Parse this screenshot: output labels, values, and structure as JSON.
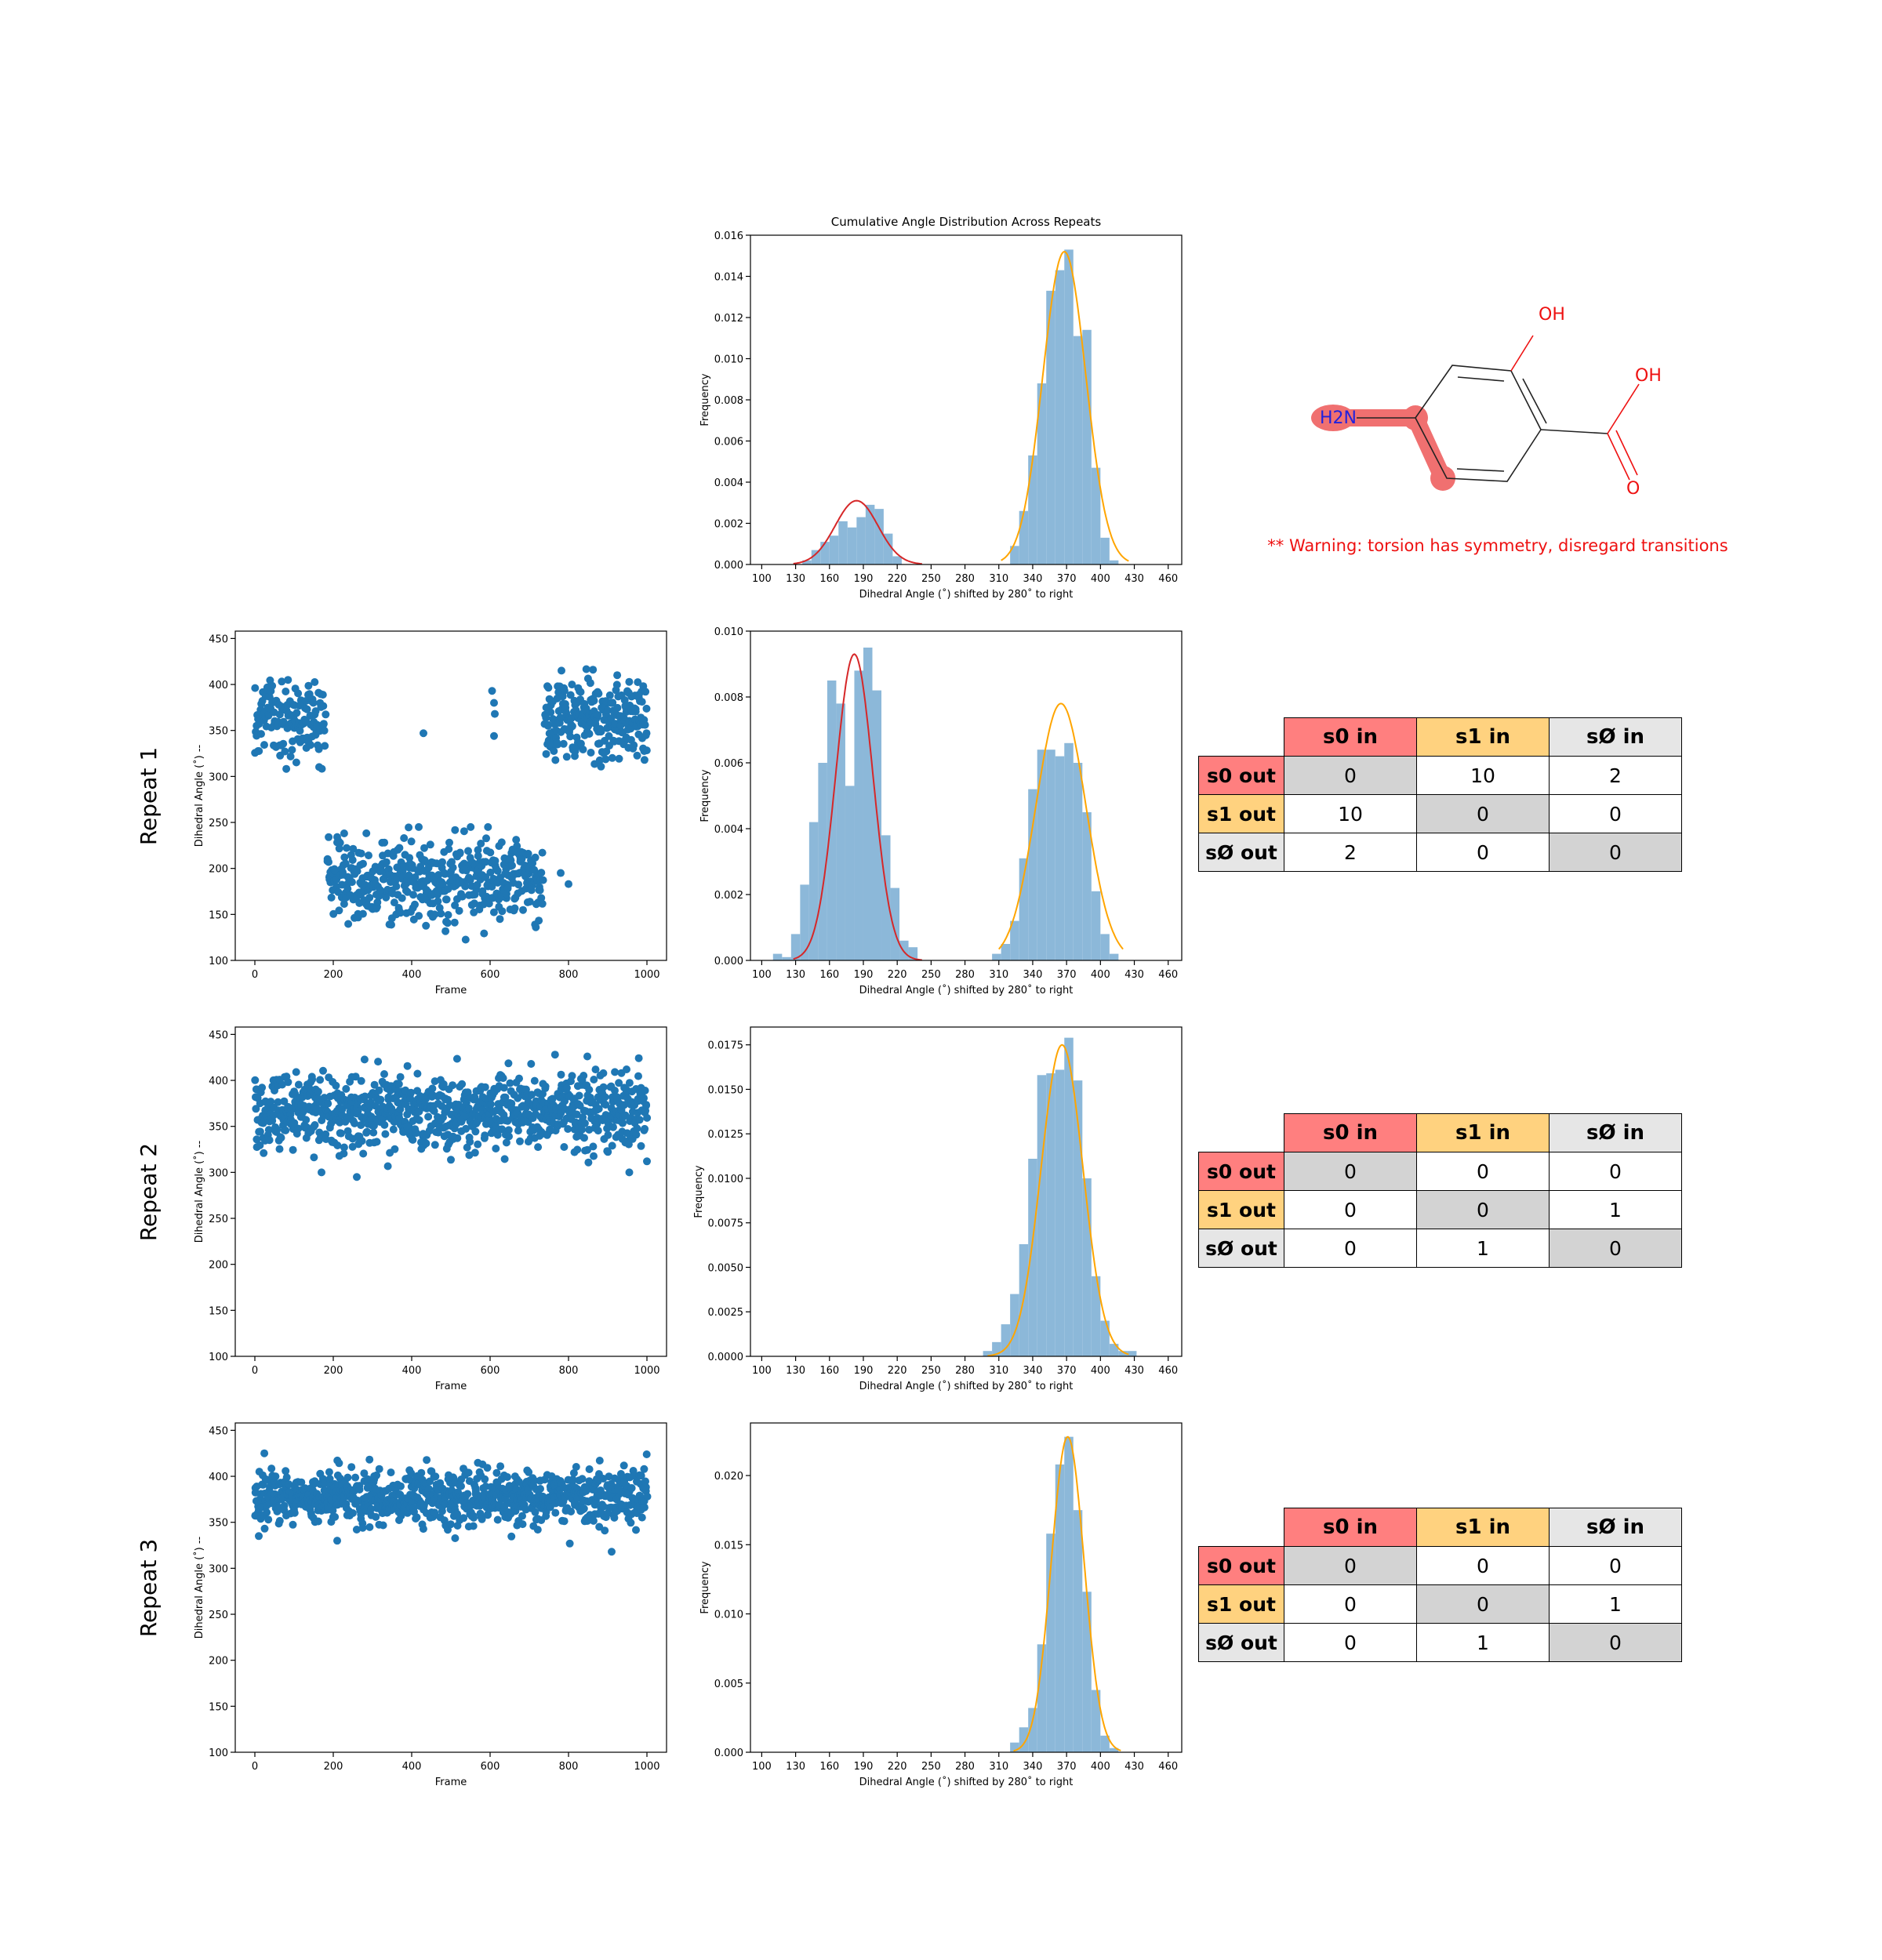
{
  "colors": {
    "scatter": "#1f77b4",
    "hist": "#8cb8d9",
    "fit_s0": "#d62728",
    "fit_s1": "#ffa500",
    "s0_header": "#ff7f7f",
    "s1_header": "#ffd27f",
    "snull_header": "#e6e6e6",
    "diagonal": "#d3d3d3",
    "warning": "#ee1111"
  },
  "molecule": {
    "labels": {
      "oh_top": "OH",
      "oh_acid": "OH",
      "o_acid": "O",
      "amine": "H2N"
    },
    "highlight_color": "#f07070"
  },
  "warning_text": "** Warning: torsion has symmetry, disregard transitions",
  "repeats": [
    {
      "label": "Repeat 1"
    },
    {
      "label": "Repeat 2"
    },
    {
      "label": "Repeat 3"
    }
  ],
  "chart_data": [
    {
      "id": "cumulative",
      "type": "bar",
      "title": "Cumulative Angle Distribution Across Repeats",
      "xlabel": "Dihedral Angle (˚) shifted by 280˚ to right",
      "ylabel": "Frequency",
      "xlim": [
        90,
        472
      ],
      "ylim": [
        0,
        0.016
      ],
      "xticks": [
        "100",
        "130",
        "160",
        "190",
        "220",
        "250",
        "280",
        "310",
        "340",
        "370",
        "400",
        "430",
        "460"
      ],
      "yticks": [
        "0.000",
        "0.002",
        "0.004",
        "0.006",
        "0.008",
        "0.010",
        "0.012",
        "0.014",
        "0.016"
      ],
      "bins": [
        [
          136,
          144,
          0.0002
        ],
        [
          144,
          152,
          0.0007
        ],
        [
          152,
          160,
          0.0011
        ],
        [
          160,
          168,
          0.0014
        ],
        [
          168,
          176,
          0.0021
        ],
        [
          176,
          184,
          0.0018
        ],
        [
          184,
          192,
          0.0023
        ],
        [
          192,
          200,
          0.0029
        ],
        [
          200,
          208,
          0.0027
        ],
        [
          208,
          216,
          0.0015
        ],
        [
          216,
          224,
          0.0004
        ],
        [
          320,
          328,
          0.0009
        ],
        [
          328,
          336,
          0.0026
        ],
        [
          336,
          344,
          0.0053
        ],
        [
          344,
          352,
          0.0088
        ],
        [
          352,
          360,
          0.0133
        ],
        [
          360,
          368,
          0.0143
        ],
        [
          368,
          376,
          0.0153
        ],
        [
          376,
          384,
          0.0111
        ],
        [
          384,
          392,
          0.0114
        ],
        [
          392,
          400,
          0.0047
        ],
        [
          400,
          408,
          0.0013
        ],
        [
          408,
          416,
          0.0002
        ]
      ],
      "fits": [
        {
          "state": "s0",
          "mu": 184,
          "sigma": 19,
          "amp": 0.0031,
          "xmin": 128,
          "xmax": 242
        },
        {
          "state": "s1",
          "mu": 368,
          "sigma": 19,
          "amp": 0.0152,
          "xmin": 312,
          "xmax": 425
        }
      ]
    },
    {
      "id": "r1-scatter",
      "type": "scatter",
      "xlabel": "Frame",
      "ylabel": "Dihedral Angle (˚) --",
      "xlim": [
        -50,
        1050
      ],
      "ylim": [
        100,
        458
      ],
      "xticks": [
        "0",
        "200",
        "400",
        "600",
        "800",
        "1000"
      ],
      "yticks": [
        "100",
        "150",
        "200",
        "250",
        "300",
        "350",
        "400",
        "450"
      ],
      "segments": [
        {
          "x0": 0,
          "x1": 180,
          "center": 365,
          "spread": 22,
          "min": 305,
          "max": 405,
          "n": 150
        },
        {
          "x0": 185,
          "x1": 735,
          "center": 185,
          "spread": 22,
          "min": 118,
          "max": 245,
          "n": 470
        },
        {
          "x0": 740,
          "x1": 1000,
          "center": 362,
          "spread": 22,
          "min": 307,
          "max": 423,
          "n": 260
        }
      ],
      "outliers": [
        [
          430,
          347
        ],
        [
          605,
          393
        ],
        [
          610,
          380
        ],
        [
          612,
          368
        ],
        [
          610,
          344
        ],
        [
          780,
          195
        ],
        [
          800,
          183
        ]
      ]
    },
    {
      "id": "r1-hist",
      "type": "bar",
      "xlabel": "Dihedral Angle (˚) shifted by 280˚ to right",
      "ylabel": "Frequency",
      "xlim": [
        90,
        472
      ],
      "ylim": [
        0,
        0.01
      ],
      "xticks": [
        "100",
        "130",
        "160",
        "190",
        "220",
        "250",
        "280",
        "310",
        "340",
        "370",
        "400",
        "430",
        "460"
      ],
      "yticks": [
        "0.000",
        "0.002",
        "0.004",
        "0.006",
        "0.008",
        "0.010"
      ],
      "bins": [
        [
          110,
          118,
          0.0002
        ],
        [
          118,
          126,
          0.0001
        ],
        [
          126,
          134,
          0.0008
        ],
        [
          134,
          142,
          0.0023
        ],
        [
          142,
          150,
          0.0042
        ],
        [
          150,
          158,
          0.006
        ],
        [
          158,
          166,
          0.0085
        ],
        [
          166,
          174,
          0.0078
        ],
        [
          174,
          182,
          0.0053
        ],
        [
          182,
          190,
          0.0088
        ],
        [
          190,
          198,
          0.0095
        ],
        [
          198,
          206,
          0.0082
        ],
        [
          206,
          214,
          0.0038
        ],
        [
          214,
          222,
          0.0022
        ],
        [
          222,
          230,
          0.0006
        ],
        [
          230,
          238,
          0.0004
        ],
        [
          304,
          312,
          0.0002
        ],
        [
          312,
          320,
          0.0005
        ],
        [
          320,
          328,
          0.0012
        ],
        [
          328,
          336,
          0.0031
        ],
        [
          336,
          344,
          0.0052
        ],
        [
          344,
          352,
          0.0064
        ],
        [
          352,
          360,
          0.0064
        ],
        [
          360,
          368,
          0.0062
        ],
        [
          368,
          376,
          0.0066
        ],
        [
          376,
          384,
          0.006
        ],
        [
          384,
          392,
          0.0045
        ],
        [
          392,
          400,
          0.0021
        ],
        [
          400,
          408,
          0.0008
        ],
        [
          408,
          416,
          0.0002
        ]
      ],
      "fits": [
        {
          "state": "s0",
          "mu": 182,
          "sigma": 16.5,
          "amp": 0.0093,
          "xmin": 128,
          "xmax": 242
        },
        {
          "state": "s1",
          "mu": 365,
          "sigma": 22,
          "amp": 0.0078,
          "xmin": 310,
          "xmax": 420
        }
      ]
    },
    {
      "id": "r2-scatter",
      "type": "scatter",
      "xlabel": "Frame",
      "ylabel": "Dihedral Angle (˚) --",
      "xlim": [
        -50,
        1050
      ],
      "ylim": [
        100,
        458
      ],
      "xticks": [
        "0",
        "200",
        "400",
        "600",
        "800",
        "1000"
      ],
      "yticks": [
        "100",
        "150",
        "200",
        "250",
        "300",
        "350",
        "400",
        "450"
      ],
      "segments": [
        {
          "x0": 0,
          "x1": 1000,
          "center": 367,
          "spread": 20,
          "min": 295,
          "max": 428,
          "n": 900
        }
      ],
      "outliers": [
        [
          170,
          300
        ],
        [
          260,
          295
        ],
        [
          955,
          300
        ],
        [
          1000,
          312
        ]
      ]
    },
    {
      "id": "r2-hist",
      "type": "bar",
      "xlabel": "Dihedral Angle (˚) shifted by 280˚ to right",
      "ylabel": "Frequency",
      "xlim": [
        90,
        472
      ],
      "ylim": [
        0,
        0.0185
      ],
      "xticks": [
        "100",
        "130",
        "160",
        "190",
        "220",
        "250",
        "280",
        "310",
        "340",
        "370",
        "400",
        "430",
        "460"
      ],
      "yticks": [
        "0.0000",
        "0.0025",
        "0.0050",
        "0.0075",
        "0.0100",
        "0.0125",
        "0.0150",
        "0.0175"
      ],
      "bins": [
        [
          296,
          304,
          0.0003
        ],
        [
          304,
          312,
          0.0008
        ],
        [
          312,
          320,
          0.0018
        ],
        [
          320,
          328,
          0.0035
        ],
        [
          328,
          336,
          0.0063
        ],
        [
          336,
          344,
          0.0111
        ],
        [
          344,
          352,
          0.0158
        ],
        [
          352,
          360,
          0.0159
        ],
        [
          360,
          368,
          0.0161
        ],
        [
          368,
          376,
          0.0179
        ],
        [
          376,
          384,
          0.0155
        ],
        [
          384,
          392,
          0.01
        ],
        [
          392,
          400,
          0.0045
        ],
        [
          400,
          408,
          0.002
        ],
        [
          408,
          416,
          0.0007
        ],
        [
          416,
          424,
          0.0003
        ],
        [
          424,
          432,
          0.0003
        ]
      ],
      "fits": [
        {
          "state": "s1",
          "mu": 366,
          "sigma": 18.5,
          "amp": 0.0175,
          "xmin": 300,
          "xmax": 425
        }
      ]
    },
    {
      "id": "r3-scatter",
      "type": "scatter",
      "xlabel": "Frame",
      "ylabel": "Dihedral Angle (˚) --",
      "xlim": [
        -50,
        1050
      ],
      "ylim": [
        100,
        458
      ],
      "xticks": [
        "0",
        "200",
        "400",
        "600",
        "800",
        "1000"
      ],
      "yticks": [
        "100",
        "150",
        "200",
        "250",
        "300",
        "350",
        "400",
        "450"
      ],
      "segments": [
        {
          "x0": 0,
          "x1": 1000,
          "center": 377,
          "spread": 15,
          "min": 318,
          "max": 425,
          "n": 900
        }
      ],
      "outliers": [
        [
          10,
          335
        ],
        [
          210,
          330
        ],
        [
          910,
          318
        ]
      ]
    },
    {
      "id": "r3-hist",
      "type": "bar",
      "xlabel": "Dihedral Angle (˚) shifted by 280˚ to right",
      "ylabel": "Frequency",
      "xlim": [
        90,
        472
      ],
      "ylim": [
        0,
        0.0238
      ],
      "xticks": [
        "100",
        "130",
        "160",
        "190",
        "220",
        "250",
        "280",
        "310",
        "340",
        "370",
        "400",
        "430",
        "460"
      ],
      "yticks": [
        "0.000",
        "0.005",
        "0.010",
        "0.015",
        "0.020"
      ],
      "bins": [
        [
          320,
          328,
          0.0007
        ],
        [
          328,
          336,
          0.0018
        ],
        [
          336,
          344,
          0.0032
        ],
        [
          344,
          352,
          0.0078
        ],
        [
          352,
          360,
          0.0158
        ],
        [
          360,
          368,
          0.0208
        ],
        [
          368,
          376,
          0.0228
        ],
        [
          376,
          384,
          0.0175
        ],
        [
          384,
          392,
          0.0116
        ],
        [
          392,
          400,
          0.0045
        ],
        [
          400,
          408,
          0.0012
        ],
        [
          408,
          416,
          0.0003
        ]
      ],
      "fits": [
        {
          "state": "s1",
          "mu": 371,
          "sigma": 14.5,
          "amp": 0.0228,
          "xmin": 323,
          "xmax": 418
        }
      ]
    }
  ],
  "transition_matrices": [
    {
      "col_headers": [
        "s0 in",
        "s1 in",
        "sØ in"
      ],
      "row_headers": [
        "s0 out",
        "s1 out",
        "sØ out"
      ],
      "cells": [
        [
          "0",
          "10",
          "2"
        ],
        [
          "10",
          "0",
          "0"
        ],
        [
          "2",
          "0",
          "0"
        ]
      ]
    },
    {
      "col_headers": [
        "s0 in",
        "s1 in",
        "sØ in"
      ],
      "row_headers": [
        "s0 out",
        "s1 out",
        "sØ out"
      ],
      "cells": [
        [
          "0",
          "0",
          "0"
        ],
        [
          "0",
          "0",
          "1"
        ],
        [
          "0",
          "1",
          "0"
        ]
      ]
    },
    {
      "col_headers": [
        "s0 in",
        "s1 in",
        "sØ in"
      ],
      "row_headers": [
        "s0 out",
        "s1 out",
        "sØ out"
      ],
      "cells": [
        [
          "0",
          "0",
          "0"
        ],
        [
          "0",
          "0",
          "1"
        ],
        [
          "0",
          "1",
          "0"
        ]
      ]
    }
  ]
}
